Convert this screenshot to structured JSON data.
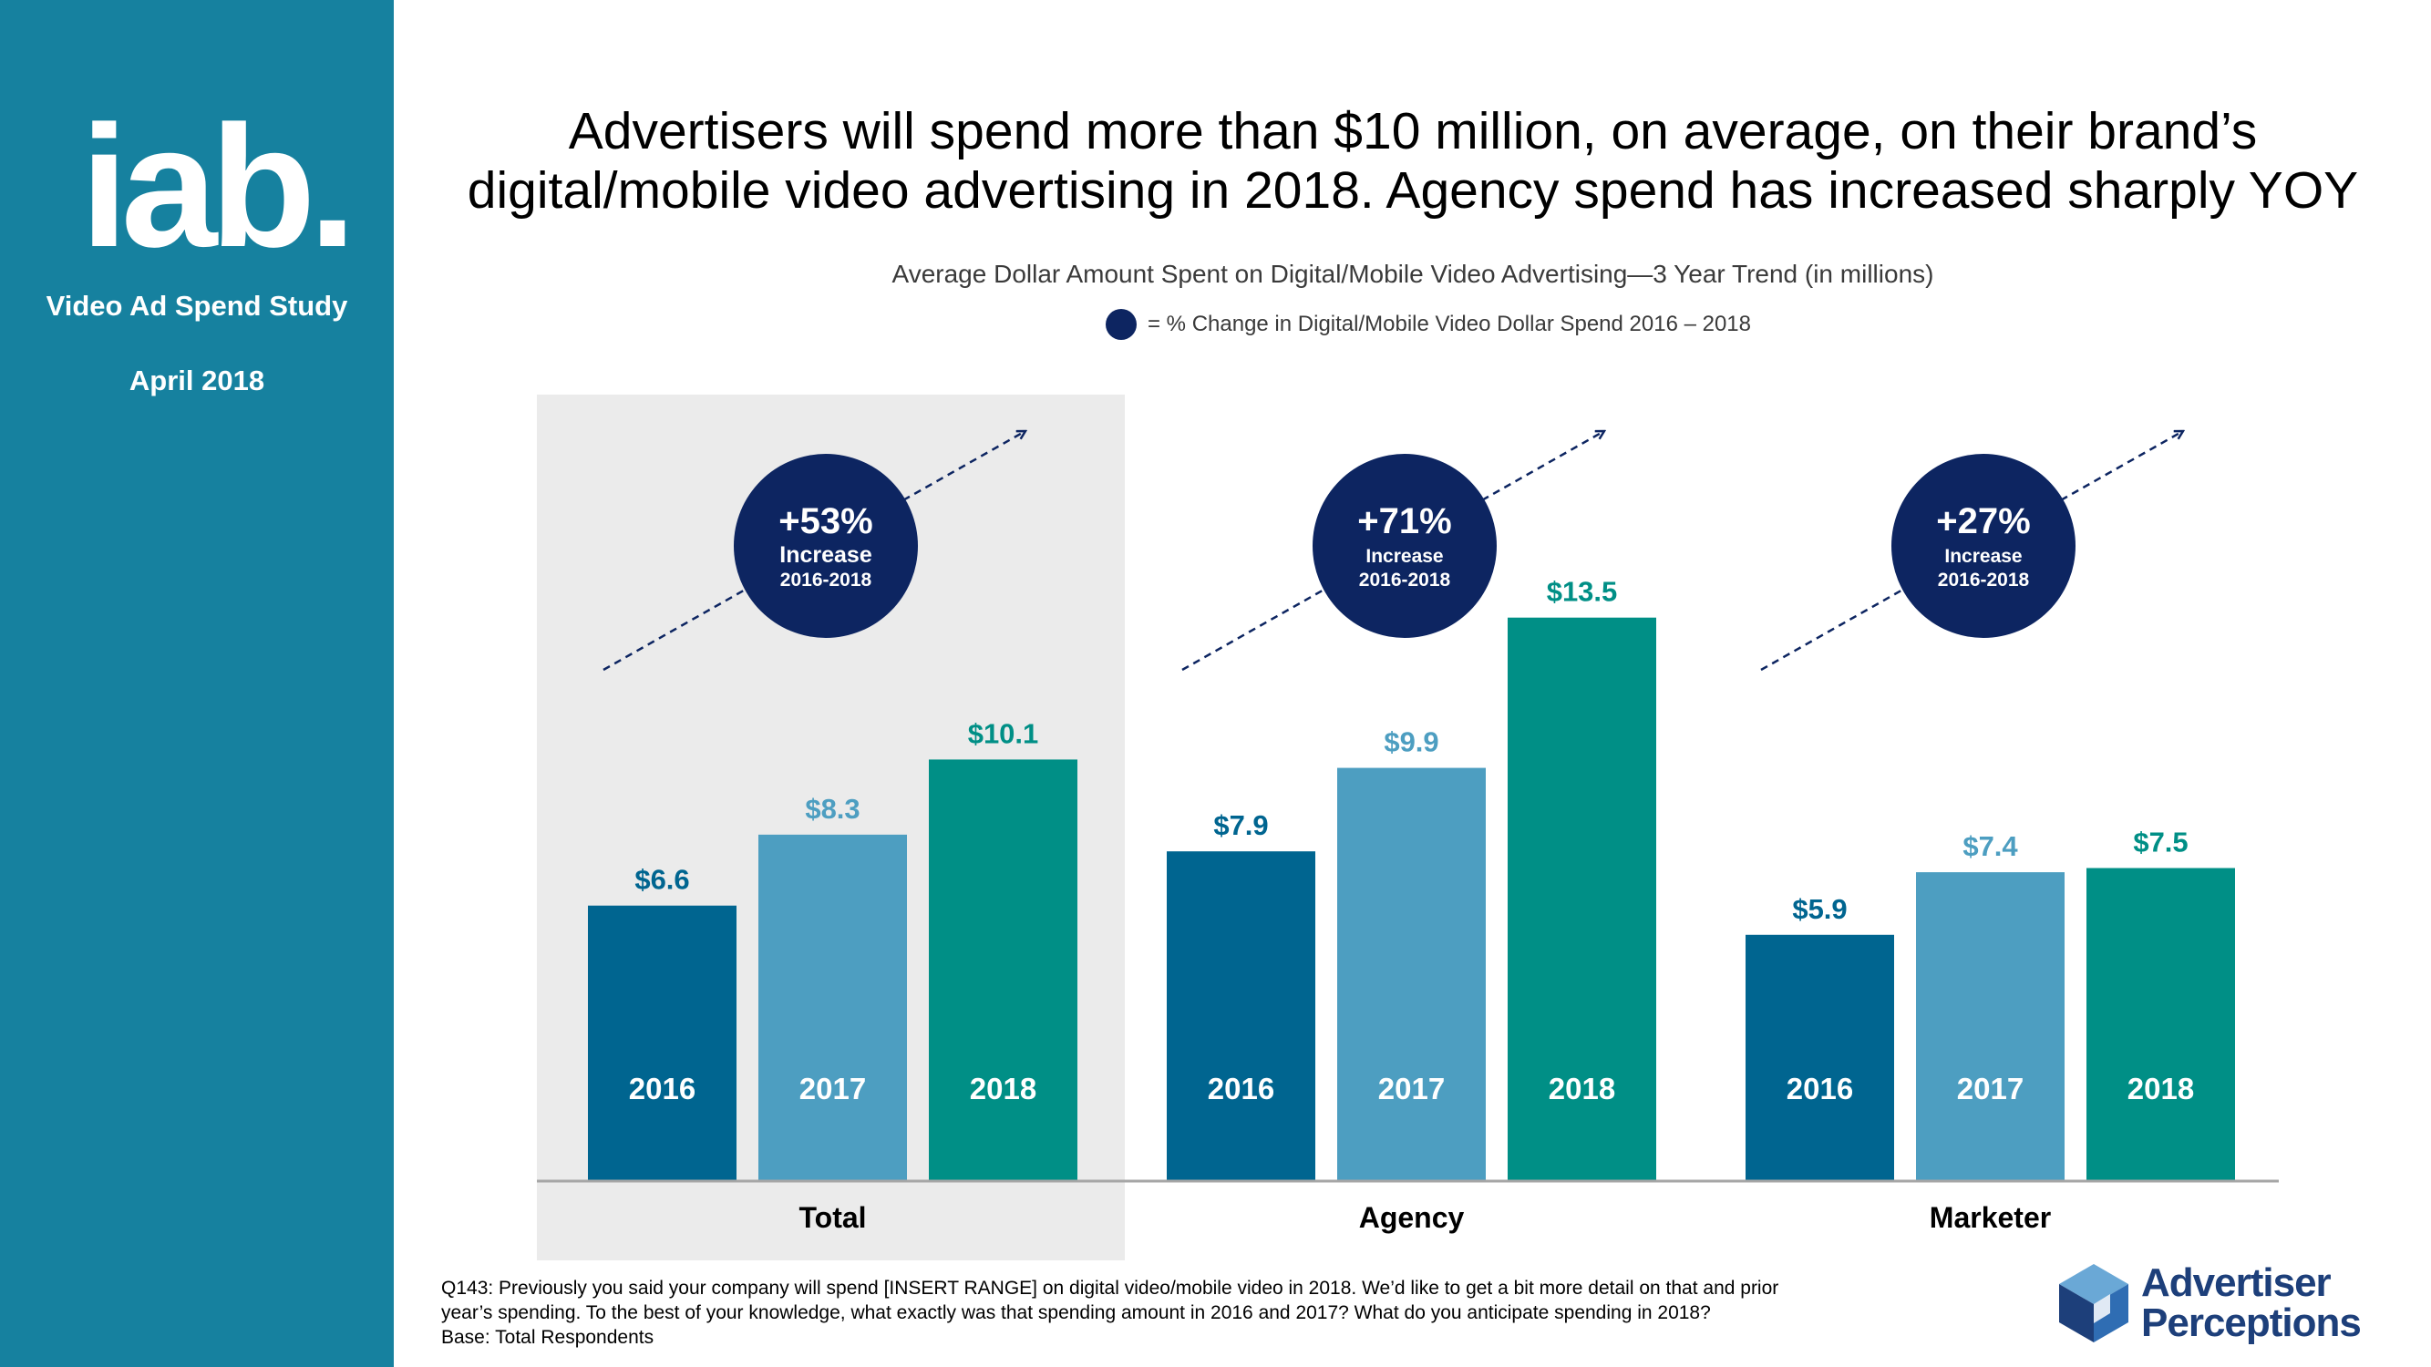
{
  "sidebar": {
    "logo_text": "iab.",
    "study": "Video Ad Spend Study",
    "date": "April 2018"
  },
  "headline": {
    "line1": "Advertisers will spend more than $10 million, on average, on their brand’s",
    "line2": "digital/mobile video advertising in 2018.  Agency spend has increased sharply YOY"
  },
  "colors": {
    "sidebar": "#16819f",
    "bar_2016": "#006590",
    "bar_2017": "#4d9ec1",
    "bar_2018": "#008f86",
    "circle": "#0d2561",
    "highlight": "#ebebeb"
  },
  "chart_data": {
    "type": "bar",
    "title": "Average Dollar Amount Spent  on Digital/Mobile Video Advertising—3 Year Trend (in millions)",
    "legend": "= % Change in Digital/Mobile Video Dollar Spend  2016 – 2018",
    "categories": [
      "Total",
      "Agency",
      "Marketer"
    ],
    "years": [
      "2016",
      "2017",
      "2018"
    ],
    "series": [
      {
        "name": "2016",
        "values": [
          6.6,
          7.9,
          5.9
        ],
        "labels": [
          "$6.6",
          "$7.9",
          "$5.9"
        ]
      },
      {
        "name": "2017",
        "values": [
          8.3,
          9.9,
          7.4
        ],
        "labels": [
          "$8.3",
          "$9.9",
          "$7.4"
        ]
      },
      {
        "name": "2018",
        "values": [
          10.1,
          13.5,
          7.5
        ],
        "labels": [
          "$10.1",
          "$13.5",
          "$7.5"
        ]
      }
    ],
    "change": [
      {
        "pct": "+53%",
        "word": "Increase",
        "range": "2016-2018"
      },
      {
        "pct": "+71%",
        "word": "Increase",
        "range": "2016-2018"
      },
      {
        "pct": "+27%",
        "word": "Increase",
        "range": "2016-2018"
      }
    ],
    "ylim": [
      0,
      15
    ],
    "highlighted_category": "Total"
  },
  "footnote": {
    "line1": "Q143: Previously you said your company will spend [INSERT RANGE] on digital video/mobile video in 2018.  We’d like to get a bit more detail on that and prior",
    "line2": "year’s spending.  To the best of your knowledge, what exactly was that spending amount in 2016 and 2017? What do you anticipate spending in 2018?",
    "line3": "Base: Total Respondents"
  },
  "brand": {
    "line1": "Advertiser",
    "line2": "Perceptions"
  }
}
